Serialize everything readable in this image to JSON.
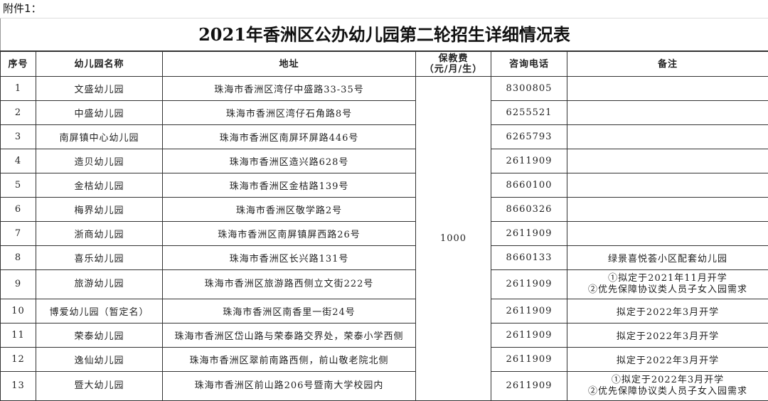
{
  "attachment_label": "附件1：",
  "title": "2021年香洲区公办幼儿园第二轮招生详细情况表",
  "headers": {
    "no": "序号",
    "name": "幼儿园名称",
    "address": "地址",
    "fee": "保教费",
    "fee_unit": "（元/月/生）",
    "phone": "咨询电话",
    "note": "备注"
  },
  "fee_value": "1000",
  "rows": [
    {
      "no": "1",
      "name": "文盛幼儿园",
      "address": "珠海市香洲区湾仔中盛路33-35号",
      "phone": "8300805",
      "note": "",
      "note2": ""
    },
    {
      "no": "2",
      "name": "中盛幼儿园",
      "address": "珠海市香洲区湾仔石角路8号",
      "phone": "6255521",
      "note": "",
      "note2": ""
    },
    {
      "no": "3",
      "name": "南屏镇中心幼儿园",
      "address": "珠海市香洲区南屏环屏路446号",
      "phone": "6265793",
      "note": "",
      "note2": ""
    },
    {
      "no": "4",
      "name": "造贝幼儿园",
      "address": "珠海市香洲区造兴路628号",
      "phone": "2611909",
      "note": "",
      "note2": ""
    },
    {
      "no": "5",
      "name": "金桔幼儿园",
      "address": "珠海市香洲区金桔路139号",
      "phone": "8660100",
      "note": "",
      "note2": ""
    },
    {
      "no": "6",
      "name": "梅界幼儿园",
      "address": "珠海市香洲区敬学路2号",
      "phone": "8660326",
      "note": "",
      "note2": ""
    },
    {
      "no": "7",
      "name": "浙商幼儿园",
      "address": "珠海市香洲区南屏镇屏西路26号",
      "phone": "2611909",
      "note": "",
      "note2": ""
    },
    {
      "no": "8",
      "name": "喜乐幼儿园",
      "address": "珠海市香洲区长兴路131号",
      "phone": "8660133",
      "note": "绿景喜悦荟小区配套幼儿园",
      "note2": ""
    },
    {
      "no": "9",
      "name": "旅游幼儿园",
      "address": "珠海市香洲区旅游路西侧立文街222号",
      "phone": "2611909",
      "note": "①拟定于2021年11月开学",
      "note2": "②优先保障协议类人员子女入园需求"
    },
    {
      "no": "10",
      "name": "博爱幼儿园（暂定名）",
      "address": "珠海市香洲区南香里一街24号",
      "phone": "2611909",
      "note": "拟定于2022年3月开学",
      "note2": ""
    },
    {
      "no": "11",
      "name": "荣泰幼儿园",
      "address": "珠海市香洲区岱山路与荣泰路交界处，荣泰小学西侧",
      "phone": "2611909",
      "note": "拟定于2022年3月开学",
      "note2": ""
    },
    {
      "no": "12",
      "name": "逸仙幼儿园",
      "address": "珠海市香洲区翠前南路西侧，前山敬老院北侧",
      "phone": "2611909",
      "note": "拟定于2022年3月开学",
      "note2": ""
    },
    {
      "no": "13",
      "name": "暨大幼儿园",
      "address": "珠海市香洲区前山路206号暨南大学校园内",
      "phone": "2611909",
      "note": "①拟定于2022年3月开学",
      "note2": "②优先保障协议类人员子女入园需求"
    }
  ]
}
